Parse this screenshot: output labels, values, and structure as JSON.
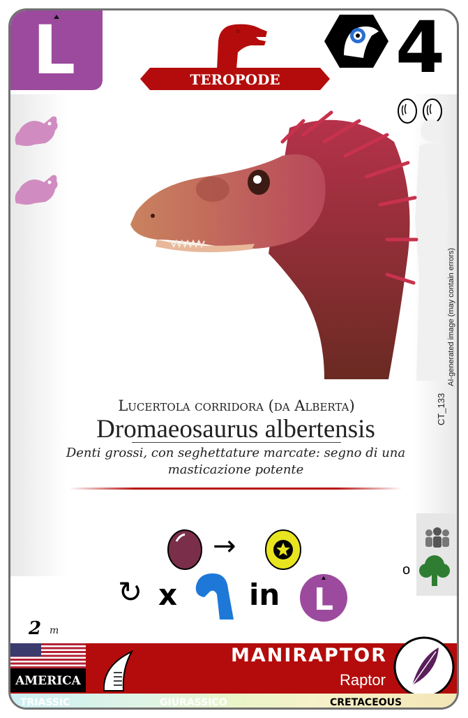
{
  "header": {
    "diet_letter": "L",
    "group_label": "TEROPODE",
    "size_value": "4"
  },
  "artwork": {
    "subject": "dinosaur-head-illustration"
  },
  "side_text": {
    "ai_notice": "AI-generated image (may contain errors)",
    "card_code": "CT_133"
  },
  "names": {
    "common": "Lucertola corridora (da Alberta)",
    "scientific": "Dromaeosaurus albertensis"
  },
  "description": "Denti grossi, con seghettature marcate: segno di una masticazione potente",
  "ability": {
    "times": "x",
    "in": "in",
    "diet_letter": "L",
    "arrow": "→",
    "rotate": "↻"
  },
  "side_icons": {
    "or": "o"
  },
  "stats": {
    "length_value": "2",
    "length_unit": "m"
  },
  "footer": {
    "region": "AMERICA",
    "class_name": "MANIRAPTOR",
    "subclass": "Raptor",
    "eras": [
      "TRIASSIC",
      "GIURASSICO",
      "CRETACEOUS"
    ],
    "active_era": "CRETACEOUS"
  },
  "colors": {
    "diet_purple": "#9c4a9e",
    "band_red": "#b40c0c",
    "prey_pink": "#d08cc0",
    "egg_purple": "#7a2e4a",
    "egg_yellow": "#e8e420",
    "neck_blue": "#1e78d8",
    "tree_green": "#2e7d32"
  }
}
